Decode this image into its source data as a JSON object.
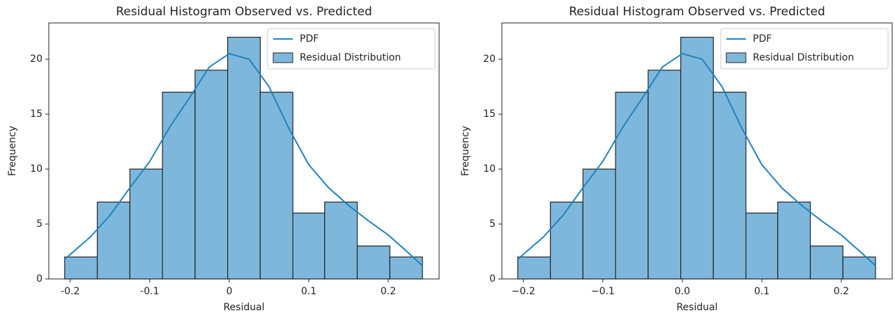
{
  "chart_data": [
    {
      "type": "histogram",
      "title": "Residual Histogram Observed vs. Predicted",
      "xlabel": "Residual",
      "ylabel": "Frequency",
      "xlim": [
        -0.227,
        0.264
      ],
      "ylim": [
        0,
        23.3
      ],
      "xticks": [
        -0.2,
        -0.1,
        0,
        0.1,
        0.2
      ],
      "yticks": [
        0,
        5,
        10,
        15,
        20
      ],
      "legend": "upper right",
      "series": [
        {
          "name": "Residual Distribution",
          "type": "histogram",
          "color": "#7db8dc",
          "bins": [
            -0.207,
            -0.166,
            -0.125,
            -0.084,
            -0.043,
            -0.002,
            0.039,
            0.08,
            0.12,
            0.161,
            0.202,
            0.243
          ],
          "values": [
            2,
            7,
            10,
            17,
            19,
            22,
            17,
            6,
            7,
            3,
            2
          ]
        },
        {
          "name": "PDF",
          "type": "line",
          "color": "#2182bd",
          "x": [
            -0.207,
            -0.175,
            -0.15,
            -0.125,
            -0.1,
            -0.075,
            -0.05,
            -0.025,
            0,
            0.025,
            0.05,
            0.075,
            0.1,
            0.125,
            0.15,
            0.175,
            0.2,
            0.225,
            0.243
          ],
          "values": [
            1.8,
            3.8,
            5.8,
            8.3,
            10.7,
            13.8,
            16.5,
            19.3,
            20.5,
            20.0,
            17.5,
            13.7,
            10.4,
            8.3,
            6.7,
            5.3,
            4.0,
            2.4,
            1.2
          ]
        }
      ]
    },
    {
      "type": "histogram",
      "title": "Residual Histogram Observed vs. Predicted",
      "xlabel": "Residual",
      "ylabel": "Frequency",
      "xlim": [
        -0.227,
        0.264
      ],
      "ylim": [
        0,
        23.3
      ],
      "xticks": [
        {
          "value": -0.2,
          "label": "−0.2"
        },
        {
          "value": -0.1,
          "label": "−0.1"
        },
        {
          "value": 0,
          "label": "0.0"
        },
        0.1,
        0.2
      ],
      "yticks": [
        0,
        5,
        10,
        15,
        20
      ],
      "legend": "upper right",
      "series": [
        {
          "name": "Residual Distribution",
          "type": "histogram",
          "color": "#7db8dc",
          "bins": [
            -0.207,
            -0.166,
            -0.125,
            -0.084,
            -0.043,
            -0.002,
            0.039,
            0.08,
            0.12,
            0.161,
            0.202,
            0.243
          ],
          "values": [
            2,
            7,
            10,
            17,
            19,
            22,
            17,
            6,
            7,
            3,
            2
          ]
        },
        {
          "name": "PDF",
          "type": "line",
          "color": "#2182bd",
          "x": [
            -0.207,
            -0.175,
            -0.15,
            -0.125,
            -0.1,
            -0.075,
            -0.05,
            -0.025,
            0,
            0.025,
            0.05,
            0.075,
            0.1,
            0.125,
            0.15,
            0.175,
            0.2,
            0.225,
            0.243
          ],
          "values": [
            1.8,
            3.8,
            5.8,
            8.3,
            10.7,
            13.8,
            16.5,
            19.3,
            20.5,
            20.0,
            17.5,
            13.7,
            10.4,
            8.3,
            6.7,
            5.3,
            4.0,
            2.4,
            1.2
          ]
        }
      ]
    }
  ]
}
